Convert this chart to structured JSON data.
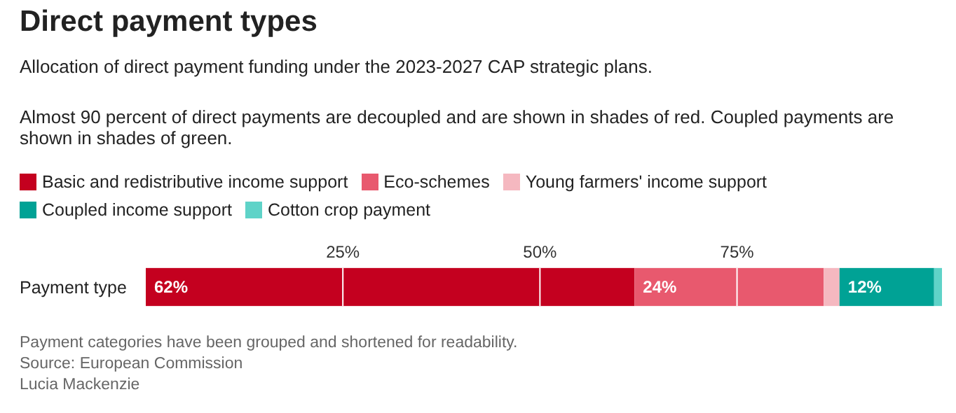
{
  "chart_data": {
    "type": "bar",
    "orientation": "horizontal",
    "stacked": true,
    "title": "Direct payment types",
    "subtitle": "Allocation of direct payment funding under the 2023-2027 CAP strategic plans.",
    "annotations": [
      "Almost 90 percent of direct payments are decoupled and are shown in shades of red. Coupled payments are shown in shades of green.",
      "Payment categories have been grouped and shortened for readability.",
      "Source: European Commission",
      "Lucia Mackenzie"
    ],
    "categories": [
      "Payment type"
    ],
    "series": [
      {
        "name": "Basic and redistributive income support",
        "color": "#c4001f",
        "values": [
          62
        ],
        "value_labels": [
          "62%"
        ]
      },
      {
        "name": "Eco-schemes",
        "color": "#e8596e",
        "values": [
          24
        ],
        "value_labels": [
          "24%"
        ]
      },
      {
        "name": "Young farmers' income support",
        "color": "#f5b8c0",
        "values": [
          2
        ],
        "value_labels": [
          null
        ]
      },
      {
        "name": "Coupled income support",
        "color": "#00a295",
        "values": [
          12
        ],
        "value_labels": [
          "12%"
        ]
      },
      {
        "name": "Cotton crop payment",
        "color": "#5fd3c8",
        "values": [
          1
        ],
        "value_labels": [
          null
        ]
      }
    ],
    "xlim": [
      0,
      101
    ],
    "xticks": [
      {
        "value": 25,
        "label": "25%"
      },
      {
        "value": 50,
        "label": "50%"
      },
      {
        "value": 75,
        "label": "75%"
      }
    ],
    "ref_lines": [
      {
        "axis": "x",
        "value": 25,
        "color": "#ffffff"
      },
      {
        "axis": "x",
        "value": 50,
        "color": "#ffffff"
      },
      {
        "axis": "x",
        "value": 75,
        "color": "#ffffff"
      }
    ],
    "legend": "top"
  }
}
